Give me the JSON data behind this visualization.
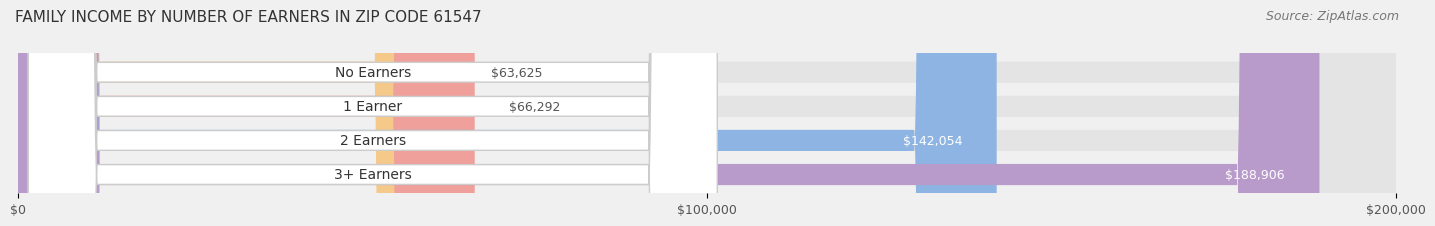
{
  "title": "FAMILY INCOME BY NUMBER OF EARNERS IN ZIP CODE 61547",
  "source": "Source: ZipAtlas.com",
  "categories": [
    "No Earners",
    "1 Earner",
    "2 Earners",
    "3+ Earners"
  ],
  "values": [
    63625,
    66292,
    142054,
    188906
  ],
  "value_labels": [
    "$63,625",
    "$66,292",
    "$142,054",
    "$188,906"
  ],
  "bar_colors": [
    "#f5c98a",
    "#f0a09a",
    "#8db4e2",
    "#b89acb"
  ],
  "bar_label_colors": [
    "#555555",
    "#555555",
    "#ffffff",
    "#ffffff"
  ],
  "label_colors": [
    "#555555",
    "#555555",
    "#5b8ed0",
    "#8b6aaf"
  ],
  "xlim": [
    0,
    200000
  ],
  "xtick_values": [
    0,
    100000,
    200000
  ],
  "xtick_labels": [
    "$0",
    "$100,000",
    "$200,000"
  ],
  "background_color": "#f0f0f0",
  "bar_bg_color": "#e4e4e4",
  "title_fontsize": 11,
  "source_fontsize": 9,
  "label_fontsize": 10,
  "value_fontsize": 9
}
